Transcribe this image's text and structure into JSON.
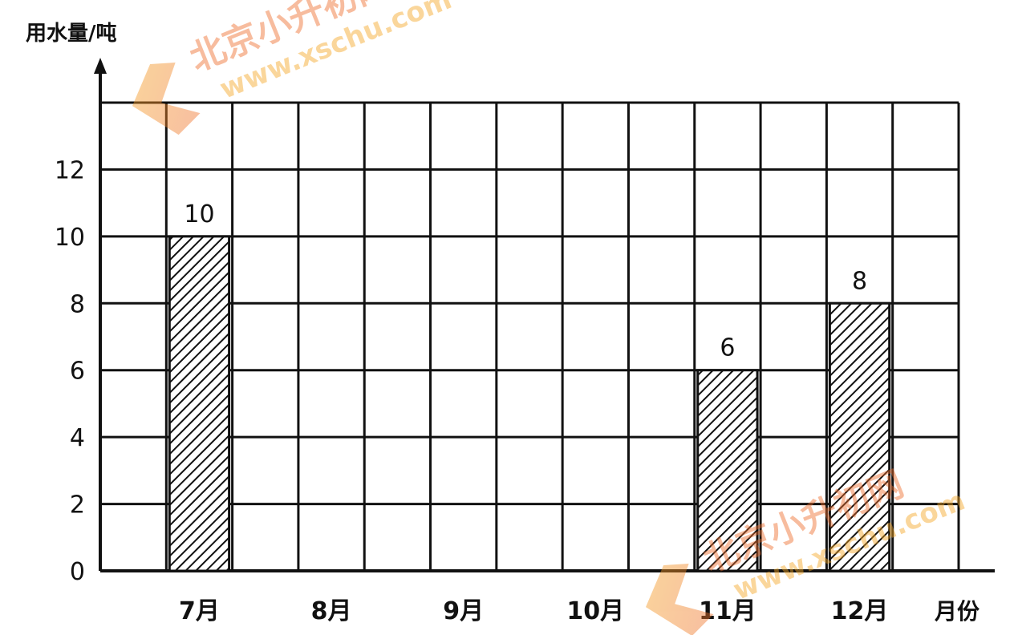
{
  "chart_data": {
    "type": "bar",
    "ylabel": "用水量/吨",
    "xlabel": "月份",
    "categories": [
      "7月",
      "8月",
      "9月",
      "10月",
      "11月",
      "12月"
    ],
    "values": [
      10,
      null,
      null,
      null,
      6,
      8
    ],
    "value_labels": [
      "10",
      "",
      "",
      "",
      "6",
      "8"
    ],
    "y_ticks": [
      "0",
      "2",
      "4",
      "6",
      "8",
      "10",
      "12"
    ],
    "ylim": [
      0,
      14
    ],
    "grid": true,
    "bar_fill": "diagonal-hatch",
    "colors": {
      "line": "#111111",
      "bar_fill": "#ffffff",
      "hatch": "#111111"
    }
  },
  "watermarks": [
    {
      "lines": [
        "北京小升初网",
        "www.xschu.com"
      ]
    },
    {
      "lines": [
        "北京小升初网",
        "www.xschu.com"
      ]
    }
  ]
}
